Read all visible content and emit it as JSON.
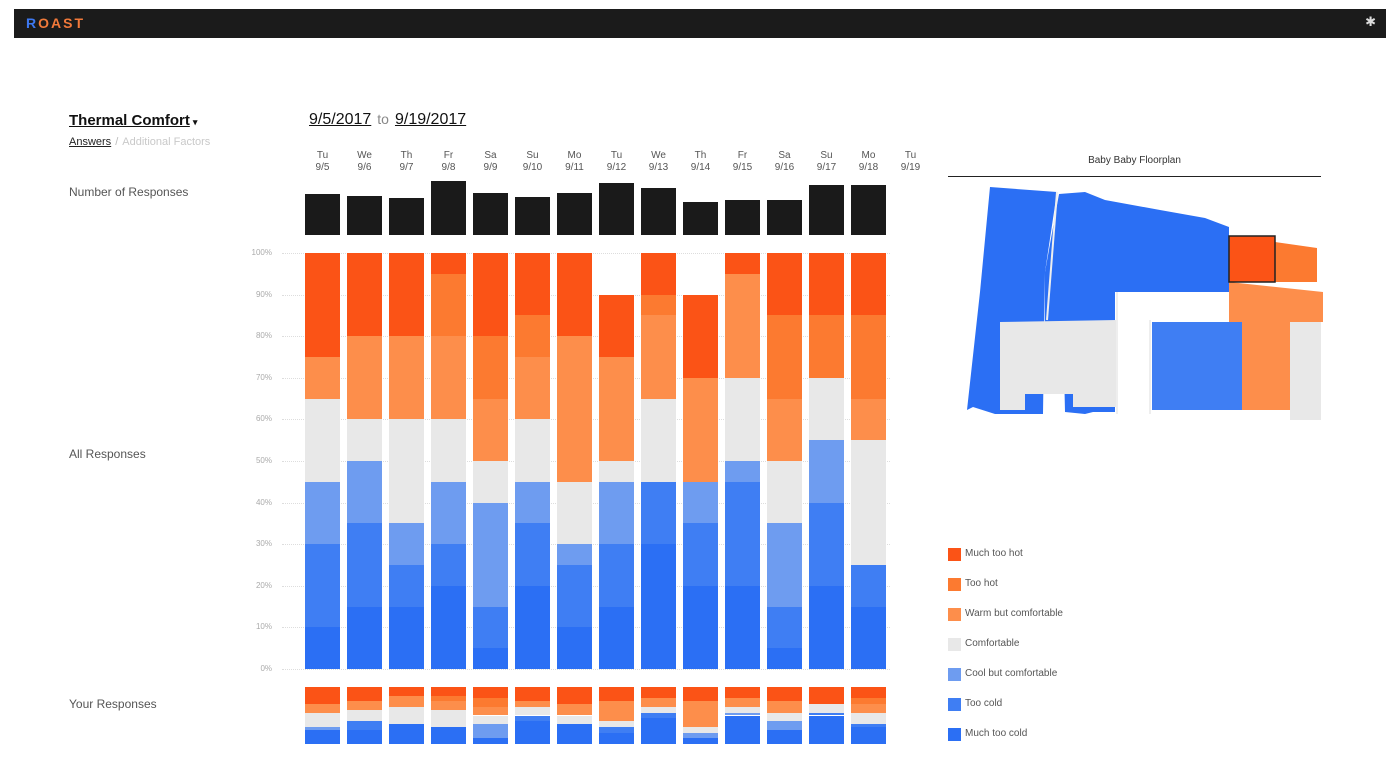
{
  "app": {
    "logo_r": "R",
    "logo_o": "O",
    "logo_rest": "AST",
    "settings_icon": "gear-icon"
  },
  "metric": {
    "label": "Thermal Comfort",
    "caret": "▾"
  },
  "subnav": {
    "answers": "Answers",
    "separator": "/",
    "additional": "Additional Factors"
  },
  "daterange": {
    "start": "9/5/2017",
    "to": "to",
    "end": "9/19/2017"
  },
  "rows": {
    "count_label": "Number of Responses",
    "all_label": "All Responses",
    "yours_label": "Your Responses"
  },
  "days": [
    {
      "dow": "Tu",
      "date": "9/5"
    },
    {
      "dow": "We",
      "date": "9/6"
    },
    {
      "dow": "Th",
      "date": "9/7"
    },
    {
      "dow": "Fr",
      "date": "9/8"
    },
    {
      "dow": "Sa",
      "date": "9/9"
    },
    {
      "dow": "Su",
      "date": "9/10"
    },
    {
      "dow": "Mo",
      "date": "9/11"
    },
    {
      "dow": "Tu",
      "date": "9/12"
    },
    {
      "dow": "We",
      "date": "9/13"
    },
    {
      "dow": "Th",
      "date": "9/14"
    },
    {
      "dow": "Fr",
      "date": "9/15"
    },
    {
      "dow": "Sa",
      "date": "9/16"
    },
    {
      "dow": "Su",
      "date": "9/17"
    },
    {
      "dow": "Mo",
      "date": "9/18"
    },
    {
      "dow": "Tu",
      "date": "9/19"
    }
  ],
  "yticks": [
    "100%",
    "90%",
    "80%",
    "70%",
    "60%",
    "50%",
    "40%",
    "30%",
    "20%",
    "10%",
    "0%"
  ],
  "colors": {
    "much_too_hot": "#fb5316",
    "too_hot": "#fc7a30",
    "warm_but_comfortable": "#fd8e4b",
    "comfortable": "#e8e8e8",
    "cool_but_comfortable": "#6e9cf0",
    "too_cold": "#3f7ef3",
    "much_too_cold": "#2b6ff4"
  },
  "floorplan": {
    "title": "Baby Baby Floorplan"
  },
  "legend": [
    {
      "label": "Much too hot",
      "color": "#fb5316"
    },
    {
      "label": "Too hot",
      "color": "#fc7a30"
    },
    {
      "label": "Warm but comfortable",
      "color": "#fd8e4b"
    },
    {
      "label": "Comfortable",
      "color": "#e8e8e8"
    },
    {
      "label": "Cool but comfortable",
      "color": "#6e9cf0"
    },
    {
      "label": "Too cold",
      "color": "#3f7ef3"
    },
    {
      "label": "Much too cold",
      "color": "#2b6ff4"
    }
  ],
  "chart_data": [
    {
      "type": "bar",
      "title": "Number of Responses",
      "categories": [
        "9/5",
        "9/6",
        "9/7",
        "9/8",
        "9/9",
        "9/10",
        "9/11",
        "9/12",
        "9/13",
        "9/14",
        "9/15",
        "9/16",
        "9/17",
        "9/18",
        "9/19"
      ],
      "values": [
        41,
        39,
        37,
        54,
        42,
        38,
        42,
        52,
        47,
        33,
        35,
        35,
        50,
        50,
        null
      ]
    },
    {
      "type": "bar",
      "title": "All Responses",
      "stacked": true,
      "ylim": [
        0,
        100
      ],
      "categories": [
        "9/5",
        "9/6",
        "9/7",
        "9/8",
        "9/9",
        "9/10",
        "9/11",
        "9/12",
        "9/13",
        "9/14",
        "9/15",
        "9/16",
        "9/17",
        "9/18",
        "9/19"
      ],
      "series": [
        {
          "name": "Much too cold",
          "values": [
            10,
            15,
            15,
            20,
            5,
            20,
            10,
            15,
            30,
            20,
            20,
            5,
            20,
            15,
            null
          ]
        },
        {
          "name": "Too cold",
          "values": [
            20,
            20,
            10,
            10,
            10,
            15,
            15,
            15,
            15,
            15,
            25,
            10,
            20,
            10,
            null
          ]
        },
        {
          "name": "Cool but comfortable",
          "values": [
            15,
            15,
            10,
            15,
            25,
            10,
            5,
            15,
            0,
            10,
            5,
            20,
            15,
            0,
            null
          ]
        },
        {
          "name": "Comfortable",
          "values": [
            20,
            10,
            25,
            15,
            10,
            15,
            15,
            5,
            20,
            0,
            20,
            15,
            15,
            30,
            null
          ]
        },
        {
          "name": "Warm but comfortable",
          "values": [
            10,
            20,
            20,
            20,
            15,
            15,
            35,
            25,
            20,
            25,
            25,
            15,
            0,
            10,
            null
          ]
        },
        {
          "name": "Too hot",
          "values": [
            0,
            0,
            0,
            15,
            15,
            10,
            0,
            0,
            5,
            0,
            0,
            20,
            15,
            20,
            null
          ]
        },
        {
          "name": "Much too hot",
          "values": [
            25,
            20,
            20,
            5,
            20,
            15,
            20,
            15,
            10,
            20,
            5,
            15,
            15,
            15,
            null
          ]
        }
      ]
    },
    {
      "type": "bar",
      "title": "Your Responses",
      "stacked": true,
      "ylim": [
        0,
        100
      ],
      "categories": [
        "9/5",
        "9/6",
        "9/7",
        "9/8",
        "9/9",
        "9/10",
        "9/11",
        "9/12",
        "9/13",
        "9/14",
        "9/15",
        "9/16",
        "9/17",
        "9/18",
        "9/19"
      ],
      "series": [
        {
          "name": "Much too cold",
          "values": [
            25,
            25,
            35,
            30,
            10,
            40,
            35,
            20,
            45,
            10,
            50,
            25,
            50,
            30,
            null
          ]
        },
        {
          "name": "Too cold",
          "values": [
            0,
            15,
            0,
            0,
            0,
            10,
            0,
            10,
            10,
            0,
            0,
            0,
            5,
            5,
            null
          ]
        },
        {
          "name": "Cool but comfortable",
          "values": [
            5,
            0,
            0,
            0,
            25,
            0,
            0,
            0,
            0,
            10,
            5,
            15,
            0,
            0,
            null
          ]
        },
        {
          "name": "Comfortable",
          "values": [
            25,
            20,
            30,
            30,
            15,
            15,
            15,
            10,
            10,
            10,
            10,
            15,
            15,
            20,
            null
          ]
        },
        {
          "name": "Warm but comfortable",
          "values": [
            15,
            15,
            20,
            15,
            15,
            10,
            20,
            35,
            15,
            45,
            15,
            20,
            0,
            15,
            null
          ]
        },
        {
          "name": "Too hot",
          "values": [
            0,
            0,
            0,
            10,
            15,
            0,
            0,
            0,
            0,
            0,
            0,
            0,
            0,
            10,
            null
          ]
        },
        {
          "name": "Much too hot",
          "values": [
            30,
            25,
            15,
            15,
            20,
            25,
            30,
            25,
            20,
            25,
            20,
            25,
            30,
            20,
            null
          ]
        }
      ]
    }
  ]
}
